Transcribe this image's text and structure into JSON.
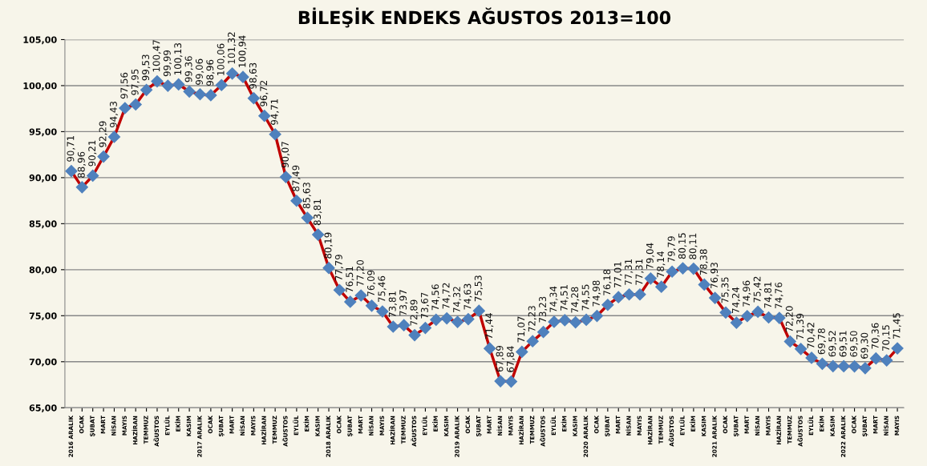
{
  "chart_data": {
    "type": "line",
    "title": "BİLEŞİK ENDEKS AĞUSTOS 2013=100",
    "categories": [
      "2016 ARALIK",
      "OCAK",
      "ŞUBAT",
      "MART",
      "NİSAN",
      "MAYIS",
      "HAZİRAN",
      "TEMMUZ",
      "AĞUSTOS",
      "EYLÜL",
      "EKİM",
      "KASIM",
      "2017 ARALIK",
      "OCAK",
      "ŞUBAT",
      "MART",
      "NİSAN",
      "MAYIS",
      "HAZİRAN",
      "TEMMUZ",
      "AĞUSTOS",
      "EYLÜL",
      "EKİM",
      "KASIM",
      "2018 ARALIK",
      "OCAK",
      "ŞUBAT",
      "MART",
      "NİSAN",
      "MAYIS",
      "HAZİRAN",
      "TEMMUZ",
      "AĞUSTOS",
      "EYLÜL",
      "EKİM",
      "KASIM",
      "2019 ARALIK",
      "OCAK",
      "ŞUBAT",
      "MART",
      "NİSAN",
      "MAYIS",
      "HAZİRAN",
      "TEMMUZ",
      "AĞUSTOS",
      "EYLÜL",
      "EKİM",
      "KASIM",
      "2020 ARALIK",
      "OCAK",
      "ŞUBAT",
      "MART",
      "NİSAN",
      "MAYIS",
      "HAZİRAN",
      "TEMMUZ",
      "AĞUSTOS",
      "EYLÜL",
      "EKİM",
      "KASIM",
      "2021 ARALIK",
      "OCAK",
      "ŞUBAT",
      "MART",
      "NİSAN",
      "MAYIS",
      "HAZİRAN",
      "TEMMUZ",
      "AĞUSTOS",
      "EYLÜL",
      "EKİM",
      "KASIM",
      "2022 ARALIK",
      "OCAK",
      "ŞUBAT",
      "MART",
      "NİSAN",
      "MAYIS"
    ],
    "series": [
      {
        "color": "#c00000",
        "values": [
          90.71,
          88.96,
          90.21,
          92.29,
          94.43,
          97.56,
          97.95,
          99.53,
          100.47,
          99.99,
          100.13,
          99.36,
          99.06,
          98.96,
          100.06,
          101.32,
          100.94,
          98.63,
          96.72,
          94.71,
          90.07,
          87.49,
          85.63,
          83.81,
          80.19,
          77.79,
          76.51,
          77.2,
          76.09,
          75.46,
          73.81,
          73.97,
          72.89,
          73.67,
          74.56,
          74.72,
          74.32,
          74.63,
          75.53,
          71.44,
          67.89,
          67.84,
          71.07,
          72.23,
          73.23,
          74.34,
          74.51,
          74.28,
          74.55,
          74.98,
          76.18,
          77.01,
          77.31,
          77.31,
          79.04,
          78.14,
          79.79,
          80.15,
          80.11,
          78.38,
          76.93,
          75.35,
          74.24,
          74.96,
          75.42,
          74.81,
          74.76,
          72.2,
          71.39,
          70.42,
          69.78,
          69.52,
          69.51,
          69.5,
          69.3,
          70.36,
          70.15,
          71.45
        ],
        "value_labels": [
          "90,71",
          "88,96",
          "90,21",
          "92,29",
          "94,43",
          "97,56",
          "97,95",
          "99,53",
          "100,47",
          "99,99",
          "100,13",
          "99,36",
          "99,06",
          "98,96",
          "100,06",
          "101,32",
          "100,94",
          "98,63",
          "96,72",
          "94,71",
          "90,07",
          "87,49",
          "85,63",
          "83,81",
          "80,19",
          "77,79",
          "76,51",
          "77,20",
          "76,09",
          "75,46",
          "73,81",
          "73,97",
          "72,89",
          "73,67",
          "74,56",
          "74,72",
          "74,32",
          "74,63",
          "75,53",
          "71,44",
          "67,89",
          "67,84",
          "71,07",
          "72,23",
          "73,23",
          "74,34",
          "74,51",
          "74,28",
          "74,55",
          "74,98",
          "76,18",
          "77,01",
          "77,31",
          "77,31",
          "79,04",
          "78,14",
          "79,79",
          "80,15",
          "80,11",
          "78,38",
          "76,93",
          "75,35",
          "74,24",
          "74,96",
          "75,42",
          "74,81",
          "74,76",
          "72,20",
          "71,39",
          "70,42",
          "69,78",
          "69,52",
          "69,51",
          "69,50",
          "69,30",
          "70,36",
          "70,15",
          "71,45"
        ]
      }
    ],
    "ylim": [
      65,
      105
    ],
    "yticks": [
      {
        "value": 65,
        "label": "65,00"
      },
      {
        "value": 70,
        "label": "70,00"
      },
      {
        "value": 75,
        "label": "75,00"
      },
      {
        "value": 80,
        "label": "80,00"
      },
      {
        "value": 85,
        "label": "85,00"
      },
      {
        "value": 90,
        "label": "90,00"
      },
      {
        "value": 95,
        "label": "95,00"
      },
      {
        "value": 100,
        "label": "100,00"
      },
      {
        "value": 105,
        "label": "105,00"
      }
    ],
    "grid": "y",
    "marker": "diamond",
    "line_style": "solid",
    "legend": false
  }
}
